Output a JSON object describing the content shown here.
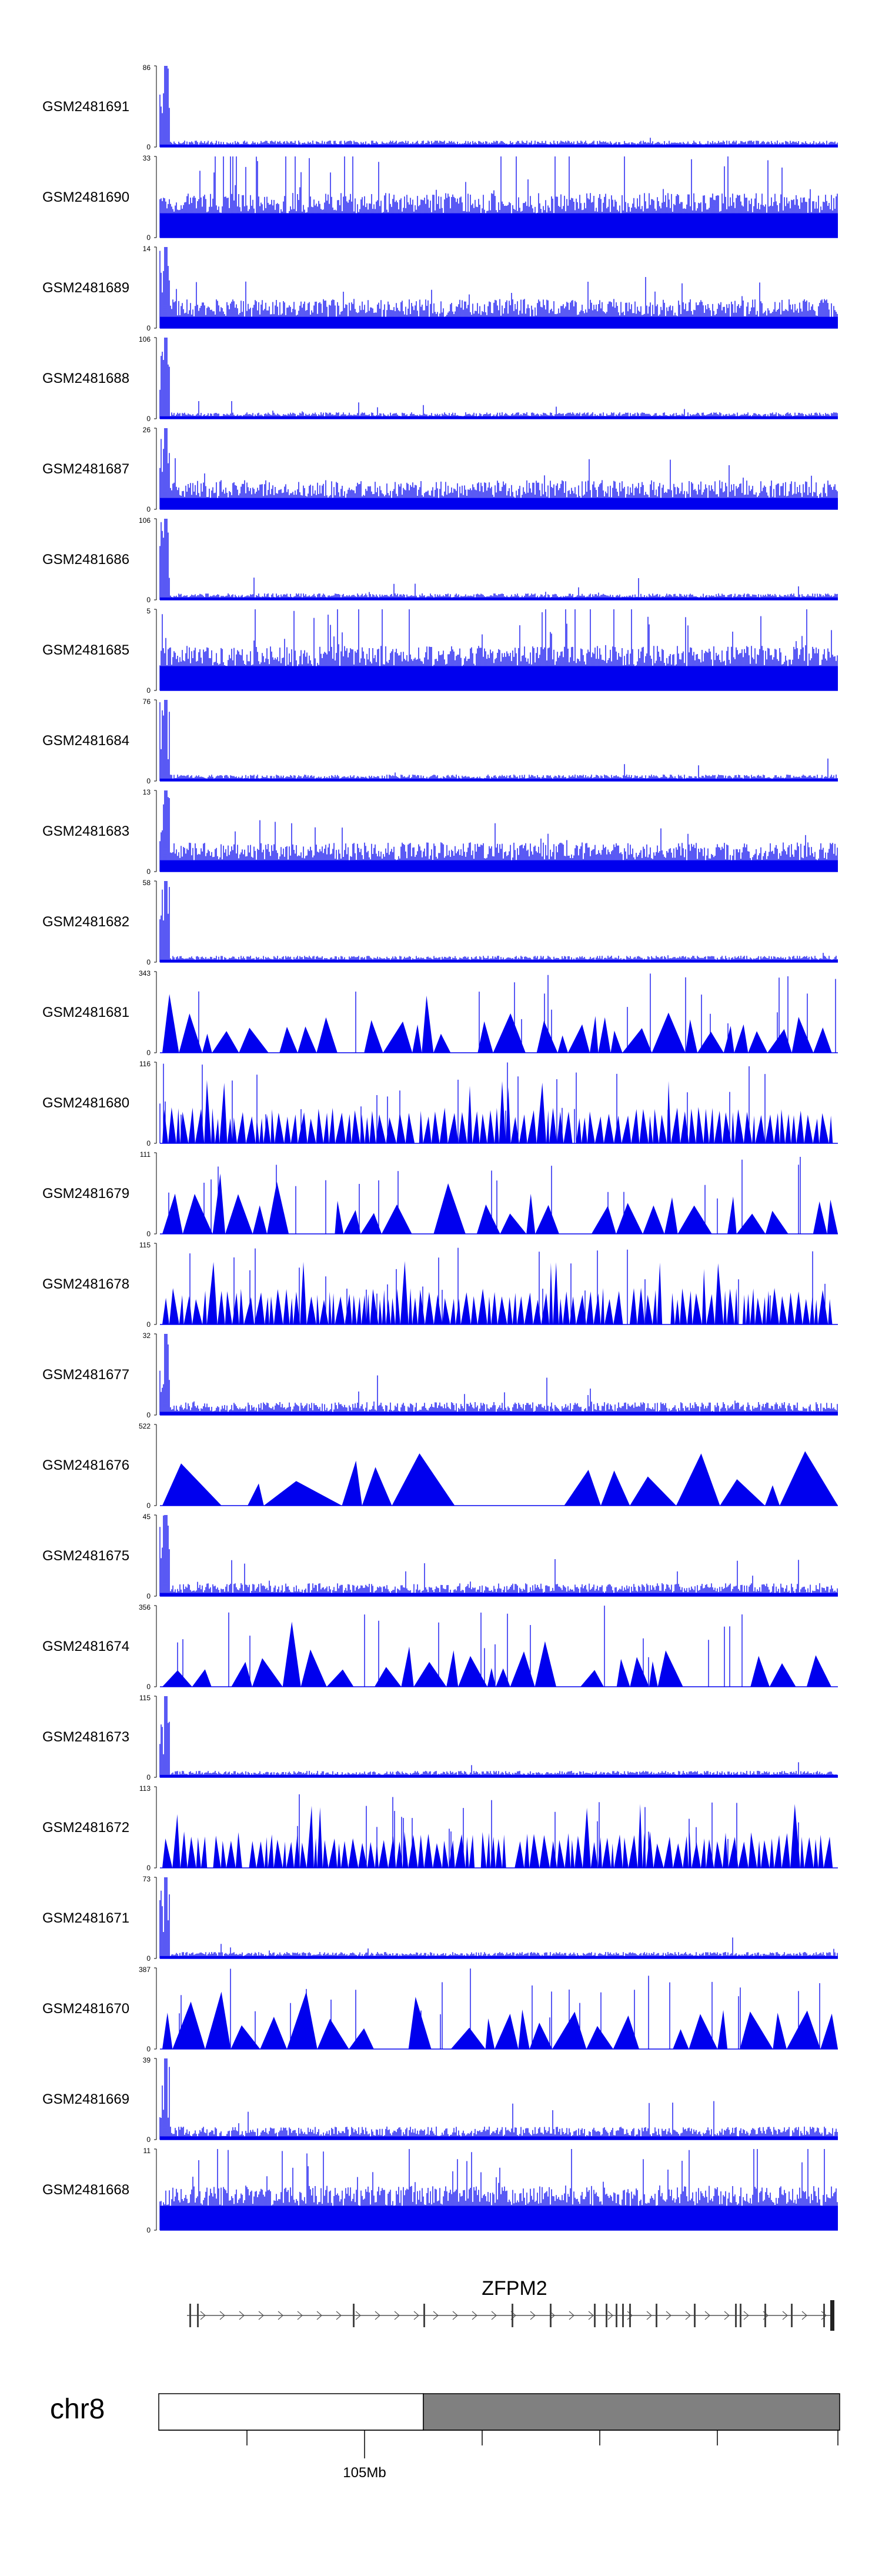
{
  "colors": {
    "signal": "#0000ee",
    "axis": "#000000",
    "chrom_band": "#808080",
    "gene": "#555555"
  },
  "chart_data": {
    "type": "area",
    "locus_label": "105Mb",
    "chromosome": "chr8",
    "gene": {
      "name": "ZFPM2",
      "strand": "+"
    },
    "tracks": [
      {
        "name": "GSM2481691",
        "ymax": "86",
        "ymin": "0",
        "profile": "sparse-peak"
      },
      {
        "name": "GSM2481690",
        "ymax": "33",
        "ymin": "0",
        "profile": "dense"
      },
      {
        "name": "GSM2481689",
        "ymax": "14",
        "ymin": "0",
        "profile": "medium"
      },
      {
        "name": "GSM2481688",
        "ymax": "106",
        "ymin": "0",
        "profile": "sparse-peak"
      },
      {
        "name": "GSM2481687",
        "ymax": "26",
        "ymin": "0",
        "profile": "medium"
      },
      {
        "name": "GSM2481686",
        "ymax": "106",
        "ymin": "0",
        "profile": "sparse-peak"
      },
      {
        "name": "GSM2481685",
        "ymax": "5",
        "ymin": "0",
        "profile": "dense"
      },
      {
        "name": "GSM2481684",
        "ymax": "76",
        "ymin": "0",
        "profile": "sparse-peak"
      },
      {
        "name": "GSM2481683",
        "ymax": "13",
        "ymin": "0",
        "profile": "medium"
      },
      {
        "name": "GSM2481682",
        "ymax": "58",
        "ymin": "0",
        "profile": "sparse-peak"
      },
      {
        "name": "GSM2481681",
        "ymax": "343",
        "ymin": "0",
        "profile": "triangles"
      },
      {
        "name": "GSM2481680",
        "ymax": "116",
        "ymin": "0",
        "profile": "dense-triangles"
      },
      {
        "name": "GSM2481679",
        "ymax": "111",
        "ymin": "0",
        "profile": "triangles"
      },
      {
        "name": "GSM2481678",
        "ymax": "115",
        "ymin": "0",
        "profile": "dense-triangles"
      },
      {
        "name": "GSM2481677",
        "ymax": "32",
        "ymin": "0",
        "profile": "medium-sparse"
      },
      {
        "name": "GSM2481676",
        "ymax": "522",
        "ymin": "0",
        "profile": "big-triangles"
      },
      {
        "name": "GSM2481675",
        "ymax": "45",
        "ymin": "0",
        "profile": "medium-sparse"
      },
      {
        "name": "GSM2481674",
        "ymax": "356",
        "ymin": "0",
        "profile": "triangles"
      },
      {
        "name": "GSM2481673",
        "ymax": "115",
        "ymin": "0",
        "profile": "sparse-peak"
      },
      {
        "name": "GSM2481672",
        "ymax": "113",
        "ymin": "0",
        "profile": "dense-triangles"
      },
      {
        "name": "GSM2481671",
        "ymax": "73",
        "ymin": "0",
        "profile": "sparse-peak"
      },
      {
        "name": "GSM2481670",
        "ymax": "387",
        "ymin": "0",
        "profile": "triangles"
      },
      {
        "name": "GSM2481669",
        "ymax": "39",
        "ymin": "0",
        "profile": "medium-sparse"
      },
      {
        "name": "GSM2481668",
        "ymax": "11",
        "ymin": "0",
        "profile": "dense"
      }
    ]
  }
}
